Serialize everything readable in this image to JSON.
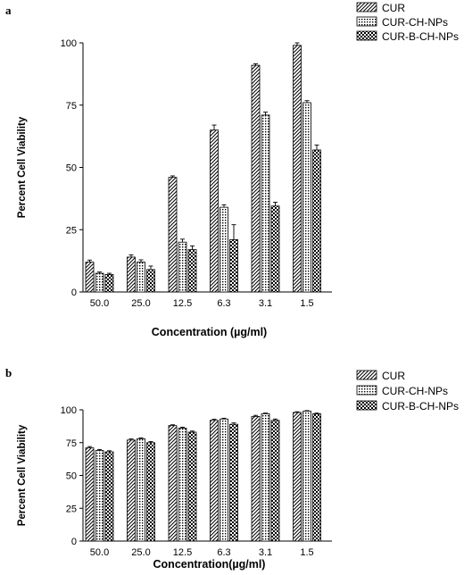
{
  "chart_data": [
    {
      "panel_label": "a",
      "type": "bar",
      "xlabel": "Concentration (µg/ml)",
      "ylabel": "Percent Cell Viability",
      "ylim": [
        0,
        100
      ],
      "yticks": [
        0,
        25,
        50,
        75,
        100
      ],
      "categories": [
        "50.0",
        "25.0",
        "12.5",
        "6.3",
        "3.1",
        "1.5"
      ],
      "legend_position": "top-right",
      "grid": false,
      "series": [
        {
          "name": "CUR",
          "pattern": "diagonal",
          "values": [
            12,
            14,
            46,
            65,
            91,
            99
          ],
          "errors": [
            0.8,
            0.9,
            0.6,
            2,
            0.6,
            1
          ]
        },
        {
          "name": "CUR-CH-NPs",
          "pattern": "dots",
          "values": [
            7.5,
            12,
            20,
            34,
            71,
            76
          ],
          "errors": [
            0.5,
            0.9,
            1.2,
            1.0,
            1.2,
            0.8
          ]
        },
        {
          "name": "CUR-B-CH-NPs",
          "pattern": "checker",
          "values": [
            7,
            9,
            17,
            21,
            34.5,
            57
          ],
          "errors": [
            0.5,
            1.4,
            1.5,
            6,
            1.5,
            2
          ]
        }
      ]
    },
    {
      "panel_label": "b",
      "type": "bar",
      "xlabel": "Concentration(µg/ml)",
      "ylabel": "Percent Cell Viability",
      "ylim": [
        0,
        100
      ],
      "yticks": [
        0,
        25,
        50,
        75,
        100
      ],
      "categories": [
        "50.0",
        "25.0",
        "12.5",
        "6.3",
        "3.1",
        "1.5"
      ],
      "legend_position": "top-right",
      "grid": false,
      "series": [
        {
          "name": "CUR",
          "pattern": "diagonal",
          "values": [
            71,
            77,
            88,
            92,
            95,
            98
          ],
          "errors": [
            1,
            0.8,
            0.6,
            0.8,
            0.8,
            0.5
          ]
        },
        {
          "name": "CUR-CH-NPs",
          "pattern": "dots",
          "values": [
            69,
            78,
            86,
            93,
            97,
            99
          ],
          "errors": [
            0.8,
            0.6,
            0.8,
            0.6,
            0.5,
            0.4
          ]
        },
        {
          "name": "CUR-B-CH-NPs",
          "pattern": "checker",
          "values": [
            68,
            75,
            83,
            89,
            92,
            97
          ],
          "errors": [
            0.8,
            0.8,
            0.8,
            1,
            1,
            0.5
          ]
        }
      ]
    }
  ]
}
